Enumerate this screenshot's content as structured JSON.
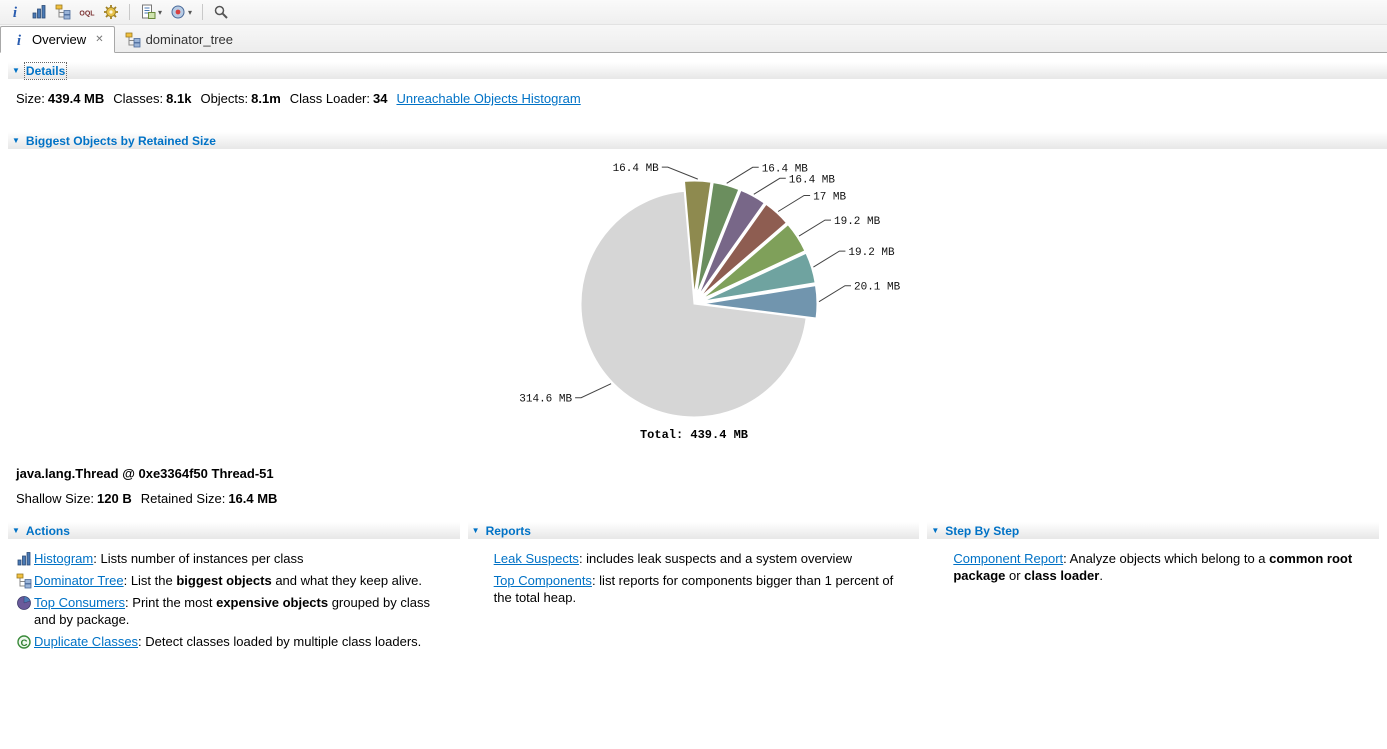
{
  "colors": {
    "accent_blue": "#0072c6",
    "link_blue": "#0072c6",
    "pie_gray": "#d6d6d6"
  },
  "toolbar": {
    "items": [
      {
        "type": "button",
        "icon": "info-icon"
      },
      {
        "type": "button",
        "icon": "histogram-icon"
      },
      {
        "type": "button",
        "icon": "dominator-tree-icon"
      },
      {
        "type": "button",
        "icon": "oql-icon"
      },
      {
        "type": "button",
        "icon": "settings-gear-icon"
      },
      {
        "type": "separator"
      },
      {
        "type": "button",
        "icon": "report-icon",
        "dropdown": true
      },
      {
        "type": "button",
        "icon": "query-browser-icon",
        "dropdown": true
      },
      {
        "type": "separator"
      },
      {
        "type": "button",
        "icon": "search-icon"
      }
    ]
  },
  "tabs": [
    {
      "label": "Overview",
      "icon": "info-icon",
      "active": true,
      "closable": true
    },
    {
      "label": "dominator_tree",
      "icon": "dominator-tree-icon",
      "active": false
    }
  ],
  "details": {
    "header": "Details",
    "fields": [
      {
        "label": "Size:",
        "value": "439.4 MB"
      },
      {
        "label": "Classes:",
        "value": "8.1k"
      },
      {
        "label": "Objects:",
        "value": "8.1m"
      },
      {
        "label": "Class Loader:",
        "value": "34"
      }
    ],
    "link": "Unreachable Objects Histogram"
  },
  "biggest_objects": {
    "header": "Biggest Objects by Retained Size"
  },
  "chart_data": {
    "type": "pie",
    "title": "Biggest Objects by Retained Size",
    "unit": "MB",
    "total": 439.4,
    "total_label": "Total: 439.4 MB",
    "start_angle": -5,
    "legend": "none",
    "slices": [
      {
        "label": "16.4 MB",
        "value": 16.4,
        "color": "#8e8a4f",
        "exploded": true,
        "side": "left"
      },
      {
        "label": "16.4 MB",
        "value": 16.4,
        "color": "#6b8e5e",
        "exploded": true,
        "side": "right"
      },
      {
        "label": "16.4 MB",
        "value": 16.4,
        "color": "#786788",
        "exploded": true,
        "side": "right"
      },
      {
        "label": "17 MB",
        "value": 17.0,
        "color": "#8e5d51",
        "exploded": true,
        "side": "right"
      },
      {
        "label": "19.2 MB",
        "value": 19.2,
        "color": "#7fa05a",
        "exploded": true,
        "side": "right"
      },
      {
        "label": "19.2 MB",
        "value": 19.2,
        "color": "#6fa3a0",
        "exploded": true,
        "side": "right"
      },
      {
        "label": "20.1 MB",
        "value": 20.1,
        "color": "#7195ae",
        "exploded": true,
        "side": "right"
      },
      {
        "label": "314.6 MB",
        "value": 314.6,
        "color": "#d6d6d6",
        "exploded": false,
        "side": "left-down"
      }
    ]
  },
  "selection": {
    "title": "java.lang.Thread @ 0xe3364f50 Thread-51",
    "fields": [
      {
        "label": "Shallow Size:",
        "value": "120 B"
      },
      {
        "label": "Retained Size:",
        "value": "16.4 MB"
      }
    ]
  },
  "actions": {
    "header": "Actions",
    "items": [
      {
        "icon": "histogram",
        "link": "Histogram",
        "parts": [
          {
            "text": ": Lists number of instances per class",
            "bold": false
          }
        ]
      },
      {
        "icon": "dominator-tree",
        "link": "Dominator Tree",
        "parts": [
          {
            "text": ": List the ",
            "bold": false
          },
          {
            "text": "biggest objects",
            "bold": true
          },
          {
            "text": " and what they keep alive.",
            "bold": false
          }
        ]
      },
      {
        "icon": "top-consumers",
        "link": "Top Consumers",
        "parts": [
          {
            "text": ": Print the most ",
            "bold": false
          },
          {
            "text": "expensive objects",
            "bold": true
          },
          {
            "text": " grouped by class and by package.",
            "bold": false
          }
        ]
      },
      {
        "icon": "duplicate-classes",
        "link": "Duplicate Classes",
        "parts": [
          {
            "text": ": Detect classes loaded by multiple class loaders.",
            "bold": false
          }
        ]
      }
    ]
  },
  "reports": {
    "header": "Reports",
    "items": [
      {
        "link": "Leak Suspects",
        "parts": [
          {
            "text": ": includes leak suspects and a system overview",
            "bold": false
          }
        ]
      },
      {
        "link": "Top Components",
        "parts": [
          {
            "text": ": list reports for components bigger than 1 percent of the total heap.",
            "bold": false
          }
        ]
      }
    ]
  },
  "step_by_step": {
    "header": "Step By Step",
    "items": [
      {
        "link": "Component Report",
        "parts": [
          {
            "text": ": Analyze objects which belong to a ",
            "bold": false
          },
          {
            "text": "common root package",
            "bold": true
          },
          {
            "text": " or ",
            "bold": false
          },
          {
            "text": "class loader",
            "bold": true
          },
          {
            "text": ".",
            "bold": false
          }
        ]
      }
    ]
  }
}
